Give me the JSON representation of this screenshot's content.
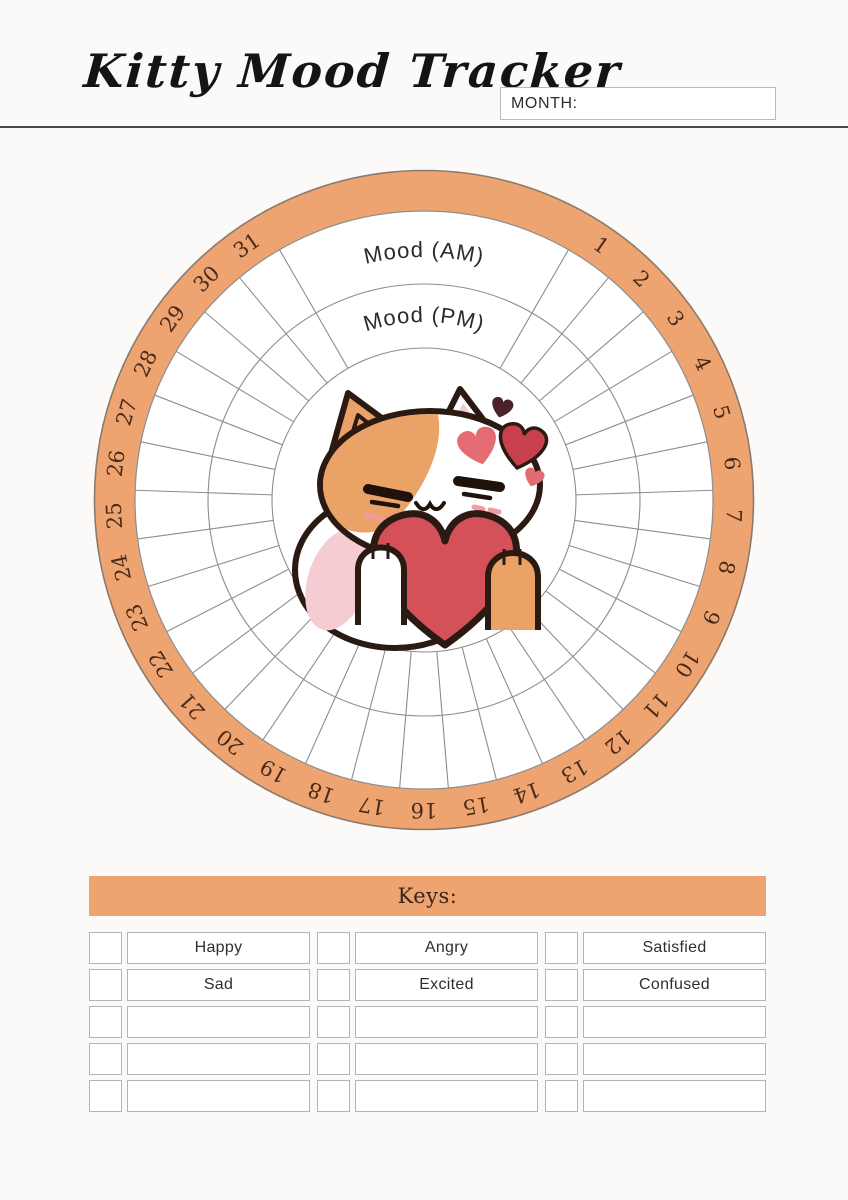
{
  "header": {
    "title": "Kitty Mood Tracker",
    "month_label": "MONTH:"
  },
  "wheel": {
    "ring_labels": {
      "am": "Mood (AM)",
      "pm": "Mood (PM)"
    },
    "days": [
      1,
      2,
      3,
      4,
      5,
      6,
      7,
      8,
      9,
      10,
      11,
      12,
      13,
      14,
      15,
      16,
      17,
      18,
      19,
      20,
      21,
      22,
      23,
      24,
      25,
      26,
      27,
      28,
      29,
      30,
      31
    ],
    "gap_degrees": 60,
    "colors": {
      "band": "#EDA470",
      "band_outline": "#8C7A6C",
      "grid_line": "#8E8E8E",
      "day_number": "#4A2A18",
      "label_text": "#2B2B2B"
    }
  },
  "keys": {
    "title": "Keys:",
    "banner_color": "#EDA470",
    "rows": [
      [
        "Happy",
        "Angry",
        "Satisfied"
      ],
      [
        "Sad",
        "Excited",
        "Confused"
      ],
      [
        "",
        "",
        ""
      ],
      [
        "",
        "",
        ""
      ],
      [
        "",
        "",
        ""
      ]
    ]
  }
}
